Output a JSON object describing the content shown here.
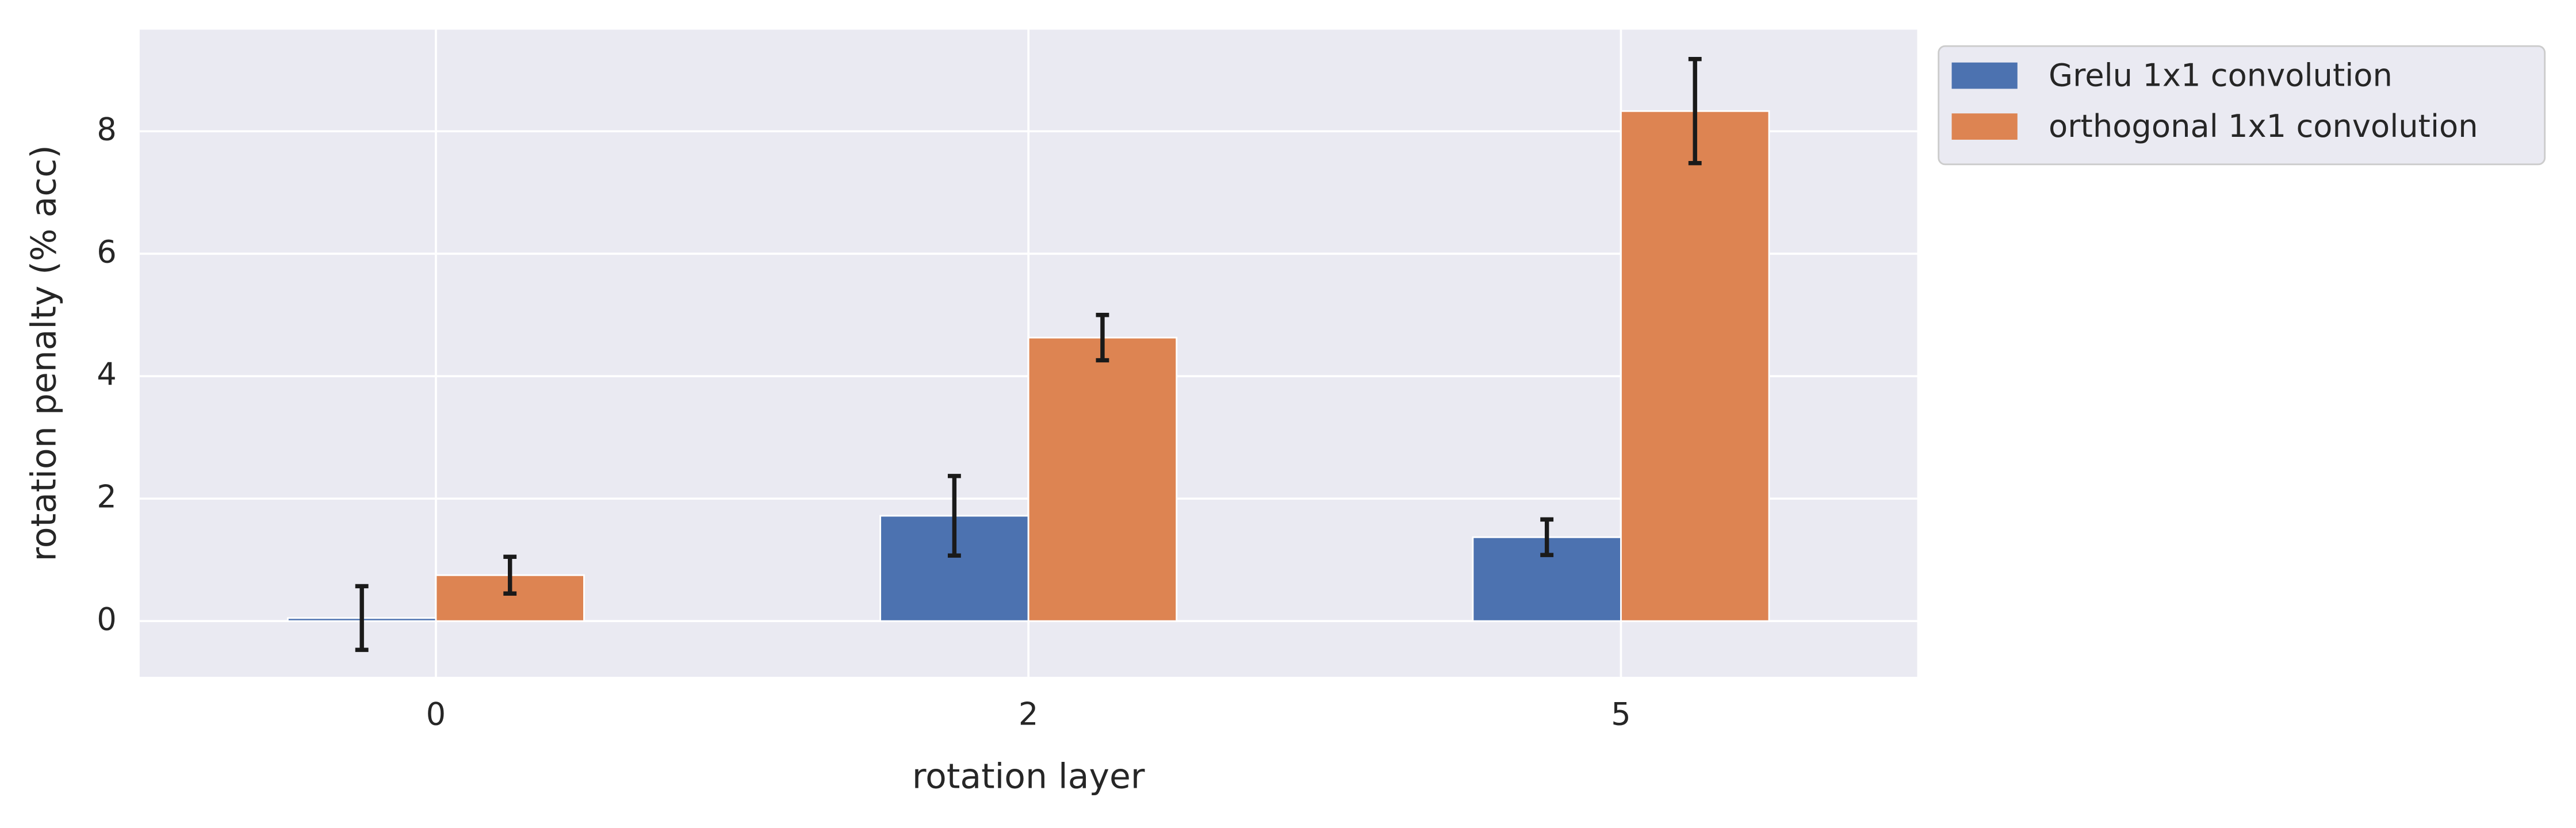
{
  "chart_data": {
    "type": "bar",
    "x_label": "rotation layer",
    "y_label": "rotation penalty (% acc)",
    "categories": [
      "0",
      "2",
      "5"
    ],
    "series": [
      {
        "name": "Grelu 1x1 convolution",
        "color": "#4c72b0",
        "values": [
          0.05,
          1.72,
          1.37
        ],
        "errors": [
          0.52,
          0.65,
          0.29
        ]
      },
      {
        "name": "orthogonal 1x1 convolution",
        "color": "#dd8452",
        "values": [
          0.75,
          4.63,
          8.33
        ],
        "errors": [
          0.3,
          0.37,
          0.85
        ]
      }
    ],
    "ylim": [
      -0.91,
      9.66
    ],
    "yticks": [
      0,
      2,
      4,
      6,
      8
    ],
    "grid": true,
    "legend": "outside upper right"
  }
}
